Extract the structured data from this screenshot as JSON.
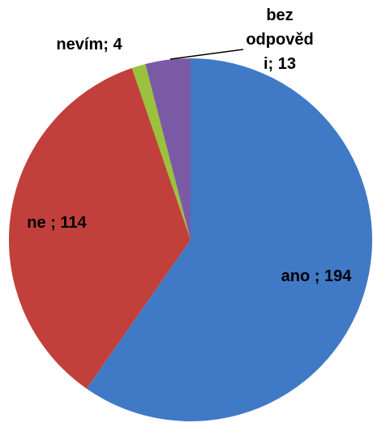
{
  "chart_data": {
    "type": "pie",
    "labels": [
      [
        "ano ; 194"
      ],
      [
        "ne ; 114"
      ],
      [
        "nevím; 4"
      ],
      [
        "bez",
        "odpověd",
        "i; 13"
      ]
    ],
    "values": [
      194,
      114,
      4,
      13
    ],
    "colors": [
      "#4079c6",
      "#c1403b",
      "#9ac23c",
      "#7b5aa5"
    ],
    "start_angle": 0,
    "direction": "clockwise"
  }
}
